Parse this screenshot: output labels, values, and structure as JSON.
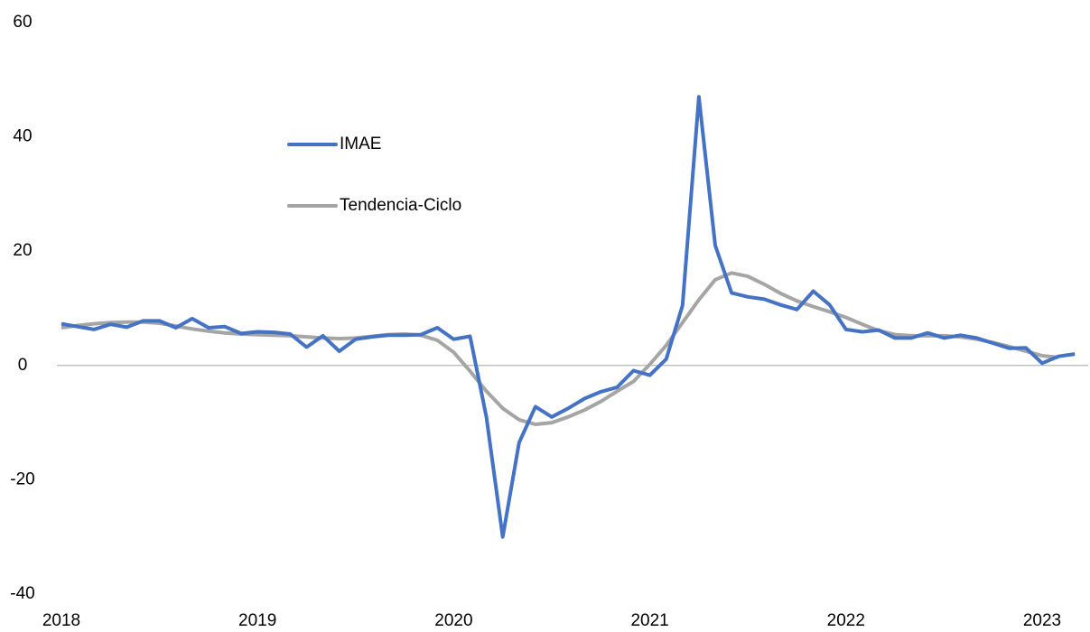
{
  "chart_data": {
    "type": "line",
    "categories": [
      "2018",
      null,
      null,
      null,
      null,
      null,
      null,
      null,
      null,
      null,
      null,
      null,
      "2019",
      null,
      null,
      null,
      null,
      null,
      null,
      null,
      null,
      null,
      null,
      null,
      "2020",
      null,
      null,
      null,
      null,
      null,
      null,
      null,
      null,
      null,
      null,
      null,
      "2021",
      null,
      null,
      null,
      null,
      null,
      null,
      null,
      null,
      null,
      null,
      null,
      "2022",
      null,
      null,
      null,
      null,
      null,
      null,
      null,
      null,
      null,
      null,
      null,
      "2023",
      null,
      null
    ],
    "series": [
      {
        "name": "IMAE",
        "color": "#4472c4",
        "values": [
          7.3,
          6.8,
          6.3,
          7.2,
          6.7,
          7.8,
          7.8,
          6.6,
          8.2,
          6.6,
          6.8,
          5.6,
          5.9,
          5.8,
          5.5,
          3.2,
          5.2,
          2.5,
          4.6,
          5.0,
          5.3,
          5.3,
          5.4,
          6.6,
          4.6,
          5.1,
          -9,
          -30,
          -13.5,
          -7.2,
          -9,
          -7.5,
          -5.8,
          -4.6,
          -3.8,
          -0.9,
          -1.7,
          1.1,
          10.5,
          47,
          21,
          12.7,
          12,
          11.6,
          10.6,
          9.8,
          13,
          10.6,
          6.3,
          5.9,
          6.2,
          4.8,
          4.8,
          5.7,
          4.8,
          5.3,
          4.8,
          3.9,
          3.0,
          3.1,
          0.4,
          1.6,
          2.0
        ]
      },
      {
        "name": "Tendencia-Ciclo",
        "color": "#a5a5a5",
        "values": [
          6.6,
          7,
          7.3,
          7.5,
          7.6,
          7.6,
          7.4,
          6.9,
          6.4,
          6,
          5.7,
          5.5,
          5.4,
          5.3,
          5.2,
          5,
          4.8,
          4.7,
          4.8,
          5.1,
          5.4,
          5.5,
          5.3,
          4.4,
          2.3,
          -1,
          -4.5,
          -7.5,
          -9.5,
          -10.3,
          -10,
          -9,
          -7.8,
          -6.3,
          -4.5,
          -2.8,
          0.2,
          3.5,
          7.5,
          11.5,
          15,
          16.2,
          15.6,
          14.2,
          12.6,
          11.3,
          10.3,
          9.4,
          8.4,
          7.2,
          6.1,
          5.4,
          5.2,
          5.2,
          5.2,
          5,
          4.6,
          4,
          3.3,
          2.5,
          1.7,
          1.4,
          null
        ]
      }
    ],
    "ylim": [
      -40,
      60
    ],
    "yticks": [
      -40,
      -20,
      0,
      20,
      40,
      60
    ],
    "grid": false,
    "legend": "upper center"
  }
}
